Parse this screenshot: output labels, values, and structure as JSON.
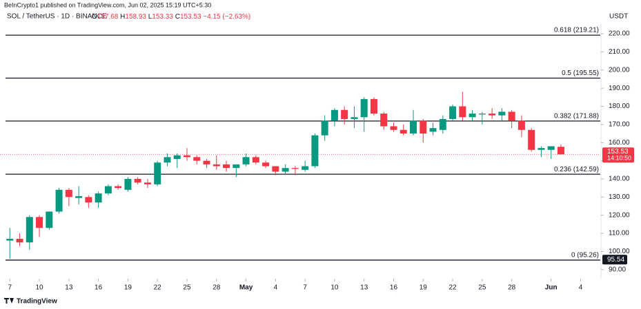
{
  "chart_data": {
    "type": "candlestick",
    "published": "BeInCrypto1 published on TradingView.com, Jun 02, 2025 15:19 UTC+5:30",
    "title": "SOL / TetherUS · 1D · BINANCE",
    "ohlc_prefixes": [
      "O",
      "H",
      "L",
      "C"
    ],
    "change_label": "−4.15",
    "change_pct_label": "(−2.63%)",
    "y_axis_unit": "USDT",
    "brand": "TradingView",
    "up_color": "#089981",
    "down_color": "#f23645",
    "x": [
      "2025-04-07",
      "2025-04-08",
      "2025-04-09",
      "2025-04-10",
      "2025-04-11",
      "2025-04-12",
      "2025-04-13",
      "2025-04-14",
      "2025-04-15",
      "2025-04-16",
      "2025-04-17",
      "2025-04-18",
      "2025-04-19",
      "2025-04-20",
      "2025-04-21",
      "2025-04-22",
      "2025-04-23",
      "2025-04-24",
      "2025-04-25",
      "2025-04-26",
      "2025-04-27",
      "2025-04-28",
      "2025-04-29",
      "2025-04-30",
      "2025-05-01",
      "2025-05-02",
      "2025-05-03",
      "2025-05-04",
      "2025-05-05",
      "2025-05-06",
      "2025-05-07",
      "2025-05-08",
      "2025-05-09",
      "2025-05-10",
      "2025-05-11",
      "2025-05-12",
      "2025-05-13",
      "2025-05-14",
      "2025-05-15",
      "2025-05-16",
      "2025-05-17",
      "2025-05-18",
      "2025-05-19",
      "2025-05-20",
      "2025-05-21",
      "2025-05-22",
      "2025-05-23",
      "2025-05-24",
      "2025-05-25",
      "2025-05-26",
      "2025-05-27",
      "2025-05-28",
      "2025-05-29",
      "2025-05-30",
      "2025-05-31",
      "2025-06-01",
      "2025-06-02"
    ],
    "open": [
      106,
      107,
      105,
      119,
      113,
      122,
      134,
      129.5,
      130,
      127,
      132,
      136,
      134,
      140,
      138,
      137,
      149,
      151,
      153,
      152,
      150,
      148,
      148,
      146,
      148,
      152,
      149,
      147,
      144,
      146,
      145,
      147,
      164,
      172,
      178,
      173,
      174,
      184,
      176,
      169,
      167,
      165,
      172,
      166,
      167,
      173,
      180,
      174,
      175.5,
      176,
      175,
      177,
      172,
      167,
      156,
      156,
      157.68
    ],
    "high": [
      113,
      110,
      120,
      120,
      122,
      135,
      135,
      136,
      131,
      133,
      137,
      137,
      141,
      141,
      140,
      150,
      154,
      154,
      157,
      153,
      151,
      153,
      150,
      148,
      154,
      153,
      150,
      147,
      148,
      147,
      150,
      165,
      175,
      179,
      180,
      180,
      185,
      185,
      177,
      171,
      170,
      178,
      173,
      171,
      175,
      181,
      188,
      178,
      177,
      179,
      179,
      178,
      175,
      168,
      158,
      158,
      158.93
    ],
    "low": [
      96,
      103,
      101,
      108,
      112,
      121,
      125,
      126,
      124,
      124,
      131,
      134,
      133,
      137,
      135,
      136,
      147,
      146,
      150,
      148,
      146,
      145,
      144,
      141,
      147,
      148,
      146,
      142,
      143,
      142,
      144,
      146,
      161,
      169,
      170,
      168,
      166,
      175,
      167,
      166,
      164,
      164,
      160,
      164,
      165,
      172,
      172,
      172,
      170,
      173,
      172,
      168,
      163,
      155,
      152,
      151,
      153.33
    ],
    "close": [
      107,
      105,
      119,
      113,
      122,
      134,
      130,
      130.5,
      127,
      132,
      136,
      135,
      140,
      138,
      137,
      149,
      152,
      153,
      152,
      150,
      148,
      147,
      146,
      148,
      152,
      149,
      147,
      144,
      146,
      145.5,
      147,
      164,
      172,
      178,
      173,
      174,
      184,
      176,
      169,
      167,
      165,
      172,
      165,
      168,
      173,
      180,
      174,
      176,
      176,
      175,
      177,
      172,
      167,
      156,
      157,
      158,
      153.53
    ],
    "last_price": 153.53,
    "countdown": "14:10:50",
    "low_marker": 95.54,
    "levels": [
      {
        "value": 219.21,
        "label": "0.618 (219.21)"
      },
      {
        "value": 195.55,
        "label": "0.5 (195.55)"
      },
      {
        "value": 171.88,
        "label": "0.382 (171.88)"
      },
      {
        "value": 142.59,
        "label": "0.236 (142.59)"
      },
      {
        "value": 95.26,
        "label": "0 (95.26)"
      }
    ],
    "ylim": [
      85,
      231
    ],
    "yticks": [
      {
        "value": 90,
        "label": "90.00"
      },
      {
        "value": 100,
        "label": "100.00"
      },
      {
        "value": 110,
        "label": "110.00"
      },
      {
        "value": 120,
        "label": "120.00"
      },
      {
        "value": 130,
        "label": "130.00"
      },
      {
        "value": 140,
        "label": "140.00"
      },
      {
        "value": 150,
        "label": "150.00"
      },
      {
        "value": 160,
        "label": "160.00"
      },
      {
        "value": 170,
        "label": "170.00"
      },
      {
        "value": 180,
        "label": "180.00"
      },
      {
        "value": 190,
        "label": "190.00"
      },
      {
        "value": 200,
        "label": "200.00"
      },
      {
        "value": 210,
        "label": "210.00"
      },
      {
        "value": 220,
        "label": "220.00"
      }
    ],
    "xlim": [
      "2025-04-06",
      "2025-06-06"
    ],
    "xticks": [
      {
        "value": "2025-04-07",
        "label": "7"
      },
      {
        "value": "2025-04-10",
        "label": "10"
      },
      {
        "value": "2025-04-13",
        "label": "13"
      },
      {
        "value": "2025-04-16",
        "label": "16"
      },
      {
        "value": "2025-04-19",
        "label": "19"
      },
      {
        "value": "2025-04-22",
        "label": "22"
      },
      {
        "value": "2025-04-25",
        "label": "25"
      },
      {
        "value": "2025-04-28",
        "label": "28"
      },
      {
        "value": "2025-05-01",
        "label": "May"
      },
      {
        "value": "2025-05-04",
        "label": "4"
      },
      {
        "value": "2025-05-07",
        "label": "7"
      },
      {
        "value": "2025-05-10",
        "label": "10"
      },
      {
        "value": "2025-05-13",
        "label": "13"
      },
      {
        "value": "2025-05-16",
        "label": "16"
      },
      {
        "value": "2025-05-19",
        "label": "19"
      },
      {
        "value": "2025-05-22",
        "label": "22"
      },
      {
        "value": "2025-05-25",
        "label": "25"
      },
      {
        "value": "2025-05-28",
        "label": "28"
      },
      {
        "value": "2025-06-01",
        "label": "Jun"
      },
      {
        "value": "2025-06-04",
        "label": "4"
      }
    ],
    "grid": false
  }
}
